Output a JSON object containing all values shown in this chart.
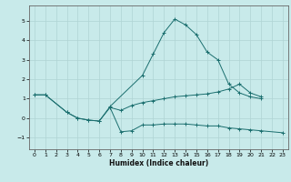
{
  "title": "",
  "xlabel": "Humidex (Indice chaleur)",
  "bg_color": "#c8eaea",
  "grid_color": "#afd4d4",
  "line_color": "#1a6e6e",
  "xlim": [
    -0.5,
    23.5
  ],
  "ylim": [
    -1.6,
    5.8
  ],
  "xticks": [
    0,
    1,
    2,
    3,
    4,
    5,
    6,
    7,
    8,
    9,
    10,
    11,
    12,
    13,
    14,
    15,
    16,
    17,
    18,
    19,
    20,
    21,
    22,
    23
  ],
  "yticks": [
    -1,
    0,
    1,
    2,
    3,
    4,
    5
  ],
  "line1_x": [
    0,
    1,
    3,
    4,
    5,
    6,
    7,
    10,
    11,
    12,
    13,
    14,
    15,
    16,
    17,
    18,
    19,
    20,
    21
  ],
  "line1_y": [
    1.2,
    1.2,
    0.3,
    0.0,
    -0.1,
    -0.15,
    0.6,
    2.2,
    3.3,
    4.4,
    5.1,
    4.8,
    4.3,
    3.4,
    3.0,
    1.75,
    1.3,
    1.1,
    1.0
  ],
  "line2_x": [
    0,
    1,
    3,
    4,
    5,
    6,
    7,
    8,
    9,
    10,
    11,
    12,
    13,
    14,
    15,
    16,
    17,
    18,
    19,
    20,
    21
  ],
  "line2_y": [
    1.2,
    1.2,
    0.3,
    0.0,
    -0.1,
    -0.15,
    0.55,
    0.4,
    0.65,
    0.8,
    0.9,
    1.0,
    1.1,
    1.15,
    1.2,
    1.25,
    1.35,
    1.5,
    1.75,
    1.3,
    1.1
  ],
  "line3_x": [
    7,
    8,
    9,
    10,
    11,
    12,
    13,
    14,
    15,
    16,
    17,
    18,
    19,
    20,
    21,
    23
  ],
  "line3_y": [
    0.55,
    -0.7,
    -0.65,
    -0.35,
    -0.35,
    -0.3,
    -0.3,
    -0.3,
    -0.35,
    -0.4,
    -0.4,
    -0.5,
    -0.55,
    -0.6,
    -0.65,
    -0.75
  ]
}
